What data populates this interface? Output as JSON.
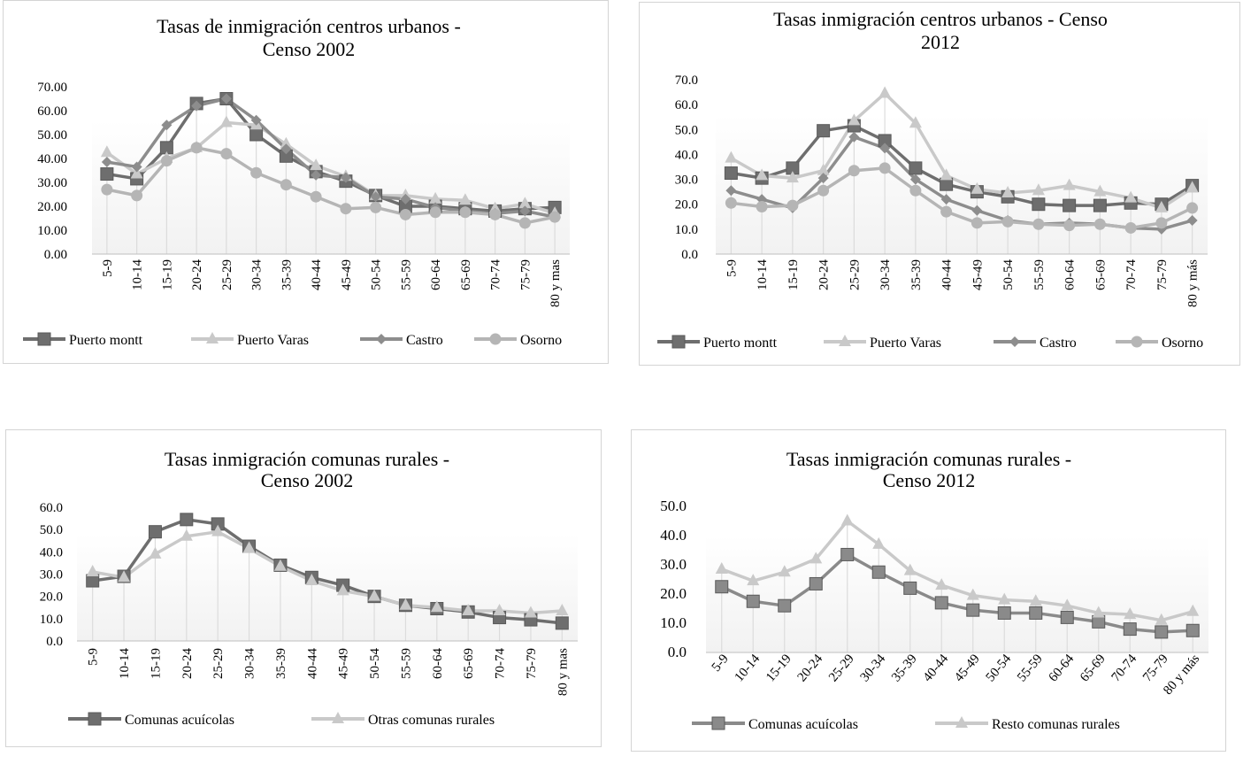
{
  "chart_data": [
    {
      "type": "line",
      "title": [
        "Tasas de inmigración centros urbanos -",
        "Censo  2002"
      ],
      "categories": [
        "5-9",
        "10-14",
        "15-19",
        "20-24",
        "25-29",
        "30-34",
        "35-39",
        "40-44",
        "45-49",
        "50-54",
        "55-59",
        "60-64",
        "65-69",
        "70-74",
        "75-79",
        "80 y mas"
      ],
      "ylim": [
        0,
        70
      ],
      "yticks": [
        "0.00",
        "10.00",
        "20.00",
        "30.00",
        "40.00",
        "50.00",
        "60.00",
        "70.00"
      ],
      "series": [
        {
          "name": "Puerto montt",
          "color": "#6e6e6e",
          "marker": "square",
          "values": [
            33.5,
            31.5,
            44.5,
            63,
            65,
            50,
            41,
            34.5,
            30.5,
            24.5,
            20,
            20,
            19,
            18,
            19,
            19.5
          ]
        },
        {
          "name": "Puerto Varas",
          "color": "#c9c9c9",
          "marker": "triangle",
          "values": [
            42.5,
            33.5,
            40,
            44.5,
            55,
            54,
            46,
            37,
            32.5,
            24.5,
            24.5,
            23,
            22.5,
            19,
            21,
            17
          ]
        },
        {
          "name": "Castro",
          "color": "#8d8d8d",
          "marker": "diamond",
          "values": [
            38.5,
            36.5,
            54,
            62,
            65,
            56,
            44,
            33,
            32,
            24,
            23,
            19.5,
            18,
            17,
            18,
            15.5
          ]
        },
        {
          "name": "Osorno",
          "color": "#b5b5b5",
          "marker": "circle",
          "values": [
            27,
            24.5,
            39,
            44.5,
            42,
            34,
            29,
            24,
            19,
            19.5,
            16.5,
            17.5,
            17.5,
            16.5,
            13,
            15.5
          ]
        }
      ]
    },
    {
      "type": "line",
      "title": [
        "Tasas inmigración centros urbanos - Censo",
        "2012"
      ],
      "categories": [
        "5-9",
        "10-14",
        "15-19",
        "20-24",
        "25-29",
        "30-34",
        "35-39",
        "40-44",
        "45-49",
        "50-54",
        "55-59",
        "60-64",
        "65-69",
        "70-74",
        "75-79",
        "80 y más"
      ],
      "ylim": [
        0,
        70
      ],
      "yticks": [
        "0.0",
        "10.0",
        "20.0",
        "30.0",
        "40.0",
        "50.0",
        "60.0",
        "70.0"
      ],
      "series": [
        {
          "name": "Puerto montt",
          "color": "#6e6e6e",
          "marker": "square",
          "values": [
            32.5,
            30.5,
            34.5,
            49.5,
            51.5,
            45.5,
            34.5,
            28,
            25,
            23,
            20,
            19.5,
            19.5,
            20.5,
            20,
            27.5
          ]
        },
        {
          "name": "Puerto Varas",
          "color": "#c9c9c9",
          "marker": "triangle",
          "values": [
            38.5,
            31.5,
            30.5,
            33.5,
            53.5,
            64.5,
            52.5,
            31.5,
            26,
            24.5,
            25.5,
            27.5,
            25,
            22.5,
            18.5,
            26.5
          ]
        },
        {
          "name": "Castro",
          "color": "#8d8d8d",
          "marker": "diamond",
          "values": [
            25.5,
            22,
            18.5,
            30.5,
            47,
            42.5,
            30,
            22,
            17.5,
            13.5,
            12,
            12.5,
            12,
            10.5,
            10,
            13.5
          ]
        },
        {
          "name": "Osorno",
          "color": "#b5b5b5",
          "marker": "circle",
          "values": [
            20.5,
            19,
            19.5,
            25.5,
            33.5,
            34.5,
            25.5,
            17,
            12.5,
            13,
            12,
            11.5,
            12,
            10.5,
            12.5,
            18.5
          ]
        }
      ]
    },
    {
      "type": "line",
      "title": [
        "Tasas inmigración comunas rurales -",
        "Censo 2002"
      ],
      "categories": [
        "5-9",
        "10-14",
        "15-19",
        "20-24",
        "25-29",
        "30-34",
        "35-39",
        "40-44",
        "45-49",
        "50-54",
        "55-59",
        "60-64",
        "65-69",
        "70-74",
        "75-79",
        "80 y mas"
      ],
      "ylim": [
        0,
        60
      ],
      "yticks": [
        "0.0",
        "10.0",
        "20.0",
        "30.0",
        "40.0",
        "50.0",
        "60.0"
      ],
      "series": [
        {
          "name": "Comunas acuícolas",
          "color": "#6e6e6e",
          "marker": "square",
          "values": [
            27,
            29,
            49,
            54.5,
            52.5,
            42.5,
            34,
            28.5,
            25,
            20,
            16,
            14.5,
            13,
            10.5,
            9.5,
            8
          ]
        },
        {
          "name": "Otras comunas rurales",
          "color": "#c9c9c9",
          "marker": "triangle",
          "values": [
            31,
            28.5,
            39,
            47,
            49,
            41.5,
            33.5,
            27,
            22.5,
            20,
            16,
            15,
            13.5,
            13.5,
            12.5,
            13.5
          ]
        }
      ]
    },
    {
      "type": "line",
      "title": [
        "Tasas inmigración comunas rurales -",
        "Censo 2012"
      ],
      "categories": [
        "5-9",
        "10-14",
        "15-19",
        "20-24",
        "25-29",
        "30-34",
        "35-39",
        "40-44",
        "45-49",
        "50-54",
        "55-59",
        "60-64",
        "65-69",
        "70-74",
        "75-79",
        "80 y más"
      ],
      "ylim": [
        0,
        50
      ],
      "yticks": [
        "0.0",
        "10.0",
        "20.0",
        "30.0",
        "40.0",
        "50.0"
      ],
      "series": [
        {
          "name": "Comunas acuícolas",
          "color": "#8a8a8a",
          "marker": "square",
          "values": [
            22.5,
            17.5,
            16,
            23.5,
            33.5,
            27.5,
            22,
            17,
            14.5,
            13.5,
            13.5,
            12,
            10.5,
            8,
            7,
            7.5
          ]
        },
        {
          "name": "Resto comunas rurales",
          "color": "#c9c9c9",
          "marker": "triangle",
          "values": [
            28.5,
            24.5,
            27.5,
            32,
            45,
            37,
            28,
            23,
            19.5,
            18,
            17.5,
            16,
            13.5,
            13,
            11,
            14
          ]
        }
      ]
    }
  ]
}
